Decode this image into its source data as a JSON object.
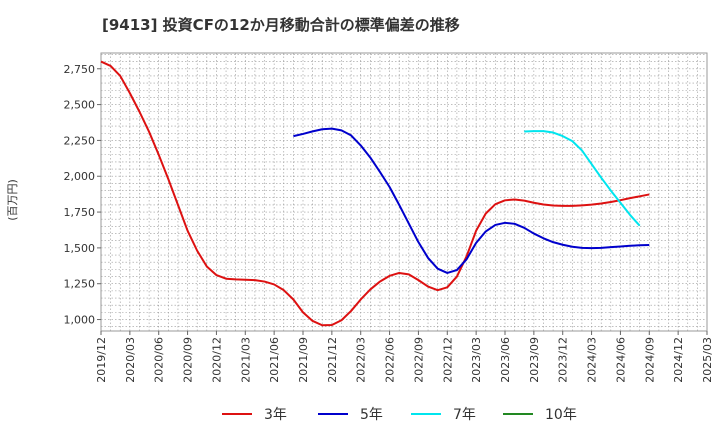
{
  "chart_data": {
    "type": "line",
    "title": "[9413]  投資CFの12か月移動合計の標準偏差の推移",
    "ylabel": "(百万円)",
    "ylim": [
      920,
      2860
    ],
    "yticks": [
      1000,
      1250,
      1500,
      1750,
      2000,
      2250,
      2500,
      2750
    ],
    "ytick_labels": [
      "1,000",
      "1,250",
      "1,500",
      "1,750",
      "2,000",
      "2,250",
      "2,500",
      "2,750"
    ],
    "xlim": [
      "2019/12",
      "2025/03"
    ],
    "xtick_labels": [
      "2019/12",
      "2020/03",
      "2020/06",
      "2020/09",
      "2020/12",
      "2021/03",
      "2021/06",
      "2021/09",
      "2021/12",
      "2022/03",
      "2022/06",
      "2022/09",
      "2022/12",
      "2023/03",
      "2023/06",
      "2023/09",
      "2023/12",
      "2024/03",
      "2024/06",
      "2024/09",
      "2024/12",
      "2025/03"
    ],
    "grid": true,
    "legend_position": "bottom",
    "series": [
      {
        "name": "3年",
        "color": "#dd1111",
        "points": [
          [
            "2019/12",
            2800
          ],
          [
            "2020/01",
            2770
          ],
          [
            "2020/02",
            2700
          ],
          [
            "2020/03",
            2580
          ],
          [
            "2020/04",
            2450
          ],
          [
            "2020/05",
            2310
          ],
          [
            "2020/06",
            2150
          ],
          [
            "2020/07",
            1980
          ],
          [
            "2020/08",
            1800
          ],
          [
            "2020/09",
            1620
          ],
          [
            "2020/10",
            1480
          ],
          [
            "2020/11",
            1370
          ],
          [
            "2020/12",
            1310
          ],
          [
            "2021/01",
            1285
          ],
          [
            "2021/02",
            1280
          ],
          [
            "2021/03",
            1278
          ],
          [
            "2021/04",
            1275
          ],
          [
            "2021/05",
            1265
          ],
          [
            "2021/06",
            1245
          ],
          [
            "2021/07",
            1205
          ],
          [
            "2021/08",
            1140
          ],
          [
            "2021/09",
            1050
          ],
          [
            "2021/10",
            990
          ],
          [
            "2021/11",
            960
          ],
          [
            "2021/12",
            962
          ],
          [
            "2022/01",
            995
          ],
          [
            "2022/02",
            1060
          ],
          [
            "2022/03",
            1140
          ],
          [
            "2022/04",
            1210
          ],
          [
            "2022/05",
            1265
          ],
          [
            "2022/06",
            1305
          ],
          [
            "2022/07",
            1325
          ],
          [
            "2022/08",
            1315
          ],
          [
            "2022/09",
            1275
          ],
          [
            "2022/10",
            1230
          ],
          [
            "2022/11",
            1205
          ],
          [
            "2022/12",
            1225
          ],
          [
            "2023/01",
            1300
          ],
          [
            "2023/02",
            1440
          ],
          [
            "2023/03",
            1620
          ],
          [
            "2023/04",
            1740
          ],
          [
            "2023/05",
            1805
          ],
          [
            "2023/06",
            1832
          ],
          [
            "2023/07",
            1838
          ],
          [
            "2023/08",
            1830
          ],
          [
            "2023/09",
            1815
          ],
          [
            "2023/10",
            1803
          ],
          [
            "2023/11",
            1796
          ],
          [
            "2023/12",
            1793
          ],
          [
            "2024/01",
            1793
          ],
          [
            "2024/02",
            1797
          ],
          [
            "2024/03",
            1802
          ],
          [
            "2024/04",
            1810
          ],
          [
            "2024/05",
            1820
          ],
          [
            "2024/06",
            1833
          ],
          [
            "2024/07",
            1847
          ],
          [
            "2024/08",
            1860
          ],
          [
            "2024/09",
            1873
          ]
        ]
      },
      {
        "name": "5年",
        "color": "#0000cc",
        "points": [
          [
            "2021/08",
            2280
          ],
          [
            "2021/09",
            2295
          ],
          [
            "2021/10",
            2313
          ],
          [
            "2021/11",
            2328
          ],
          [
            "2021/12",
            2332
          ],
          [
            "2022/01",
            2320
          ],
          [
            "2022/02",
            2285
          ],
          [
            "2022/03",
            2215
          ],
          [
            "2022/04",
            2130
          ],
          [
            "2022/05",
            2030
          ],
          [
            "2022/06",
            1925
          ],
          [
            "2022/07",
            1800
          ],
          [
            "2022/08",
            1670
          ],
          [
            "2022/09",
            1540
          ],
          [
            "2022/10",
            1430
          ],
          [
            "2022/11",
            1355
          ],
          [
            "2022/12",
            1325
          ],
          [
            "2023/01",
            1345
          ],
          [
            "2023/02",
            1420
          ],
          [
            "2023/03",
            1535
          ],
          [
            "2023/04",
            1615
          ],
          [
            "2023/05",
            1660
          ],
          [
            "2023/06",
            1675
          ],
          [
            "2023/07",
            1668
          ],
          [
            "2023/08",
            1640
          ],
          [
            "2023/09",
            1600
          ],
          [
            "2023/10",
            1567
          ],
          [
            "2023/11",
            1540
          ],
          [
            "2023/12",
            1522
          ],
          [
            "2024/01",
            1508
          ],
          [
            "2024/02",
            1500
          ],
          [
            "2024/03",
            1498
          ],
          [
            "2024/04",
            1500
          ],
          [
            "2024/05",
            1505
          ],
          [
            "2024/06",
            1510
          ],
          [
            "2024/07",
            1515
          ],
          [
            "2024/08",
            1518
          ],
          [
            "2024/09",
            1520
          ]
        ]
      },
      {
        "name": "7年",
        "color": "#00e5ee",
        "points": [
          [
            "2023/08",
            2312
          ],
          [
            "2023/09",
            2315
          ],
          [
            "2023/10",
            2315
          ],
          [
            "2023/11",
            2305
          ],
          [
            "2023/12",
            2280
          ],
          [
            "2024/01",
            2245
          ],
          [
            "2024/02",
            2180
          ],
          [
            "2024/03",
            2085
          ],
          [
            "2024/04",
            1990
          ],
          [
            "2024/05",
            1900
          ],
          [
            "2024/06",
            1815
          ],
          [
            "2024/07",
            1730
          ],
          [
            "2024/08",
            1655
          ]
        ]
      },
      {
        "name": "10年",
        "color": "#228822",
        "points": []
      }
    ]
  }
}
